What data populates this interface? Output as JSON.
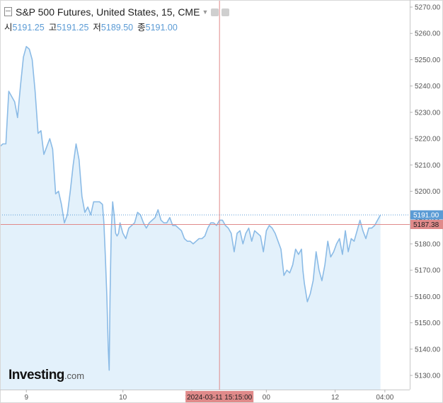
{
  "header": {
    "title": "S&P 500 Futures, United States, 15, CME"
  },
  "ohlc": {
    "open_label": "시",
    "open": "5191.25",
    "high_label": "고",
    "high": "5191.25",
    "low_label": "저",
    "low": "5189.50",
    "close_label": "종",
    "close": "5191.00"
  },
  "logo": {
    "main": "Investing",
    "suffix": ".com"
  },
  "colors": {
    "line": "#8bbbe6",
    "fill": "#e3f1fb",
    "crosshair": "#e08a8a",
    "last_price": "#5b9bd5",
    "axis_text": "#555555"
  },
  "chart_data": {
    "type": "area",
    "y_axis": {
      "range": [
        5125,
        5272
      ],
      "ticks": [
        "5270.00",
        "5260.00",
        "5250.00",
        "5240.00",
        "5230.00",
        "5220.00",
        "5210.00",
        "5200.00",
        "5190.00",
        "5180.00",
        "5170.00",
        "5160.00",
        "5150.00",
        "5140.00",
        "5130.00"
      ],
      "tick_values": [
        5270,
        5260,
        5250,
        5240,
        5230,
        5220,
        5210,
        5200,
        5190,
        5180,
        5170,
        5160,
        5150,
        5140,
        5130
      ]
    },
    "x_axis": {
      "range": [
        0,
        14.0
      ],
      "ticks": [
        {
          "label": "9",
          "x": 0.9
        },
        {
          "label": "10",
          "x": 4.2
        },
        {
          "label": "12:0",
          "x": 6.55
        },
        {
          "label": "00",
          "x": 9.1
        },
        {
          "label": "12",
          "x": 11.45
        },
        {
          "label": "04:00",
          "x": 13.15
        }
      ]
    },
    "series": [
      {
        "values": [
          [
            0.0,
            5217
          ],
          [
            0.1,
            5218
          ],
          [
            0.2,
            5218
          ],
          [
            0.3,
            5238
          ],
          [
            0.4,
            5236
          ],
          [
            0.5,
            5234
          ],
          [
            0.6,
            5228
          ],
          [
            0.7,
            5240
          ],
          [
            0.8,
            5251
          ],
          [
            0.9,
            5255
          ],
          [
            1.0,
            5254
          ],
          [
            1.1,
            5250
          ],
          [
            1.2,
            5238
          ],
          [
            1.3,
            5222
          ],
          [
            1.4,
            5223
          ],
          [
            1.5,
            5214
          ],
          [
            1.6,
            5217
          ],
          [
            1.7,
            5220
          ],
          [
            1.8,
            5216
          ],
          [
            1.9,
            5199
          ],
          [
            2.0,
            5200
          ],
          [
            2.1,
            5195
          ],
          [
            2.2,
            5188
          ],
          [
            2.3,
            5191
          ],
          [
            2.4,
            5200
          ],
          [
            2.5,
            5210
          ],
          [
            2.6,
            5218
          ],
          [
            2.7,
            5212
          ],
          [
            2.8,
            5198
          ],
          [
            2.9,
            5192
          ],
          [
            3.0,
            5194
          ],
          [
            3.1,
            5191
          ],
          [
            3.2,
            5196
          ],
          [
            3.3,
            5196
          ],
          [
            3.4,
            5196
          ],
          [
            3.5,
            5195
          ],
          [
            3.55,
            5188
          ],
          [
            3.6,
            5175
          ],
          [
            3.65,
            5160
          ],
          [
            3.7,
            5140
          ],
          [
            3.73,
            5132
          ],
          [
            3.76,
            5160
          ],
          [
            3.8,
            5185
          ],
          [
            3.85,
            5196
          ],
          [
            3.9,
            5191
          ],
          [
            3.95,
            5184
          ],
          [
            4.0,
            5183
          ],
          [
            4.05,
            5184
          ],
          [
            4.1,
            5188
          ],
          [
            4.15,
            5186
          ],
          [
            4.2,
            5184
          ],
          [
            4.3,
            5182
          ],
          [
            4.4,
            5186
          ],
          [
            4.5,
            5187
          ],
          [
            4.6,
            5188
          ],
          [
            4.7,
            5192
          ],
          [
            4.8,
            5191
          ],
          [
            4.9,
            5188
          ],
          [
            5.0,
            5186
          ],
          [
            5.1,
            5188
          ],
          [
            5.2,
            5189
          ],
          [
            5.3,
            5190
          ],
          [
            5.4,
            5193
          ],
          [
            5.5,
            5189
          ],
          [
            5.6,
            5188
          ],
          [
            5.7,
            5188
          ],
          [
            5.8,
            5190
          ],
          [
            5.9,
            5187
          ],
          [
            6.0,
            5187
          ],
          [
            6.1,
            5186
          ],
          [
            6.2,
            5185
          ],
          [
            6.3,
            5182
          ],
          [
            6.4,
            5181
          ],
          [
            6.5,
            5181
          ],
          [
            6.6,
            5180
          ],
          [
            6.7,
            5181
          ],
          [
            6.8,
            5182
          ],
          [
            6.9,
            5182
          ],
          [
            7.0,
            5183
          ],
          [
            7.1,
            5186
          ],
          [
            7.2,
            5188
          ],
          [
            7.3,
            5188
          ],
          [
            7.4,
            5187
          ],
          [
            7.5,
            5189
          ],
          [
            7.6,
            5189
          ],
          [
            7.7,
            5187
          ],
          [
            7.8,
            5186
          ],
          [
            7.9,
            5184
          ],
          [
            8.0,
            5177
          ],
          [
            8.1,
            5184
          ],
          [
            8.2,
            5185
          ],
          [
            8.3,
            5180
          ],
          [
            8.4,
            5184
          ],
          [
            8.5,
            5186
          ],
          [
            8.6,
            5181
          ],
          [
            8.7,
            5185
          ],
          [
            8.8,
            5184
          ],
          [
            8.9,
            5183
          ],
          [
            9.0,
            5177
          ],
          [
            9.1,
            5185
          ],
          [
            9.2,
            5187
          ],
          [
            9.3,
            5186
          ],
          [
            9.4,
            5184
          ],
          [
            9.5,
            5181
          ],
          [
            9.6,
            5178
          ],
          [
            9.7,
            5168
          ],
          [
            9.8,
            5170
          ],
          [
            9.9,
            5169
          ],
          [
            10.0,
            5172
          ],
          [
            10.1,
            5178
          ],
          [
            10.2,
            5176
          ],
          [
            10.3,
            5178
          ],
          [
            10.35,
            5170
          ],
          [
            10.4,
            5165
          ],
          [
            10.5,
            5158
          ],
          [
            10.6,
            5161
          ],
          [
            10.7,
            5166
          ],
          [
            10.8,
            5177
          ],
          [
            10.9,
            5170
          ],
          [
            11.0,
            5166
          ],
          [
            11.1,
            5172
          ],
          [
            11.2,
            5181
          ],
          [
            11.3,
            5175
          ],
          [
            11.4,
            5177
          ],
          [
            11.5,
            5180
          ],
          [
            11.6,
            5182
          ],
          [
            11.7,
            5176
          ],
          [
            11.8,
            5185
          ],
          [
            11.9,
            5177
          ],
          [
            12.0,
            5182
          ],
          [
            12.1,
            5181
          ],
          [
            12.2,
            5185
          ],
          [
            12.3,
            5189
          ],
          [
            12.4,
            5185
          ],
          [
            12.5,
            5182
          ],
          [
            12.6,
            5186
          ],
          [
            12.7,
            5186
          ],
          [
            12.8,
            5187
          ],
          [
            12.9,
            5189
          ],
          [
            13.0,
            5191
          ]
        ]
      }
    ],
    "last_price": {
      "value": 5191.0,
      "label": "5191.00"
    },
    "crosshair": {
      "value": 5187.38,
      "price_label": "5187.38",
      "x": 7.5,
      "time_label": "2024-03-11 15:15:00"
    },
    "grid": false,
    "legend": "none"
  }
}
